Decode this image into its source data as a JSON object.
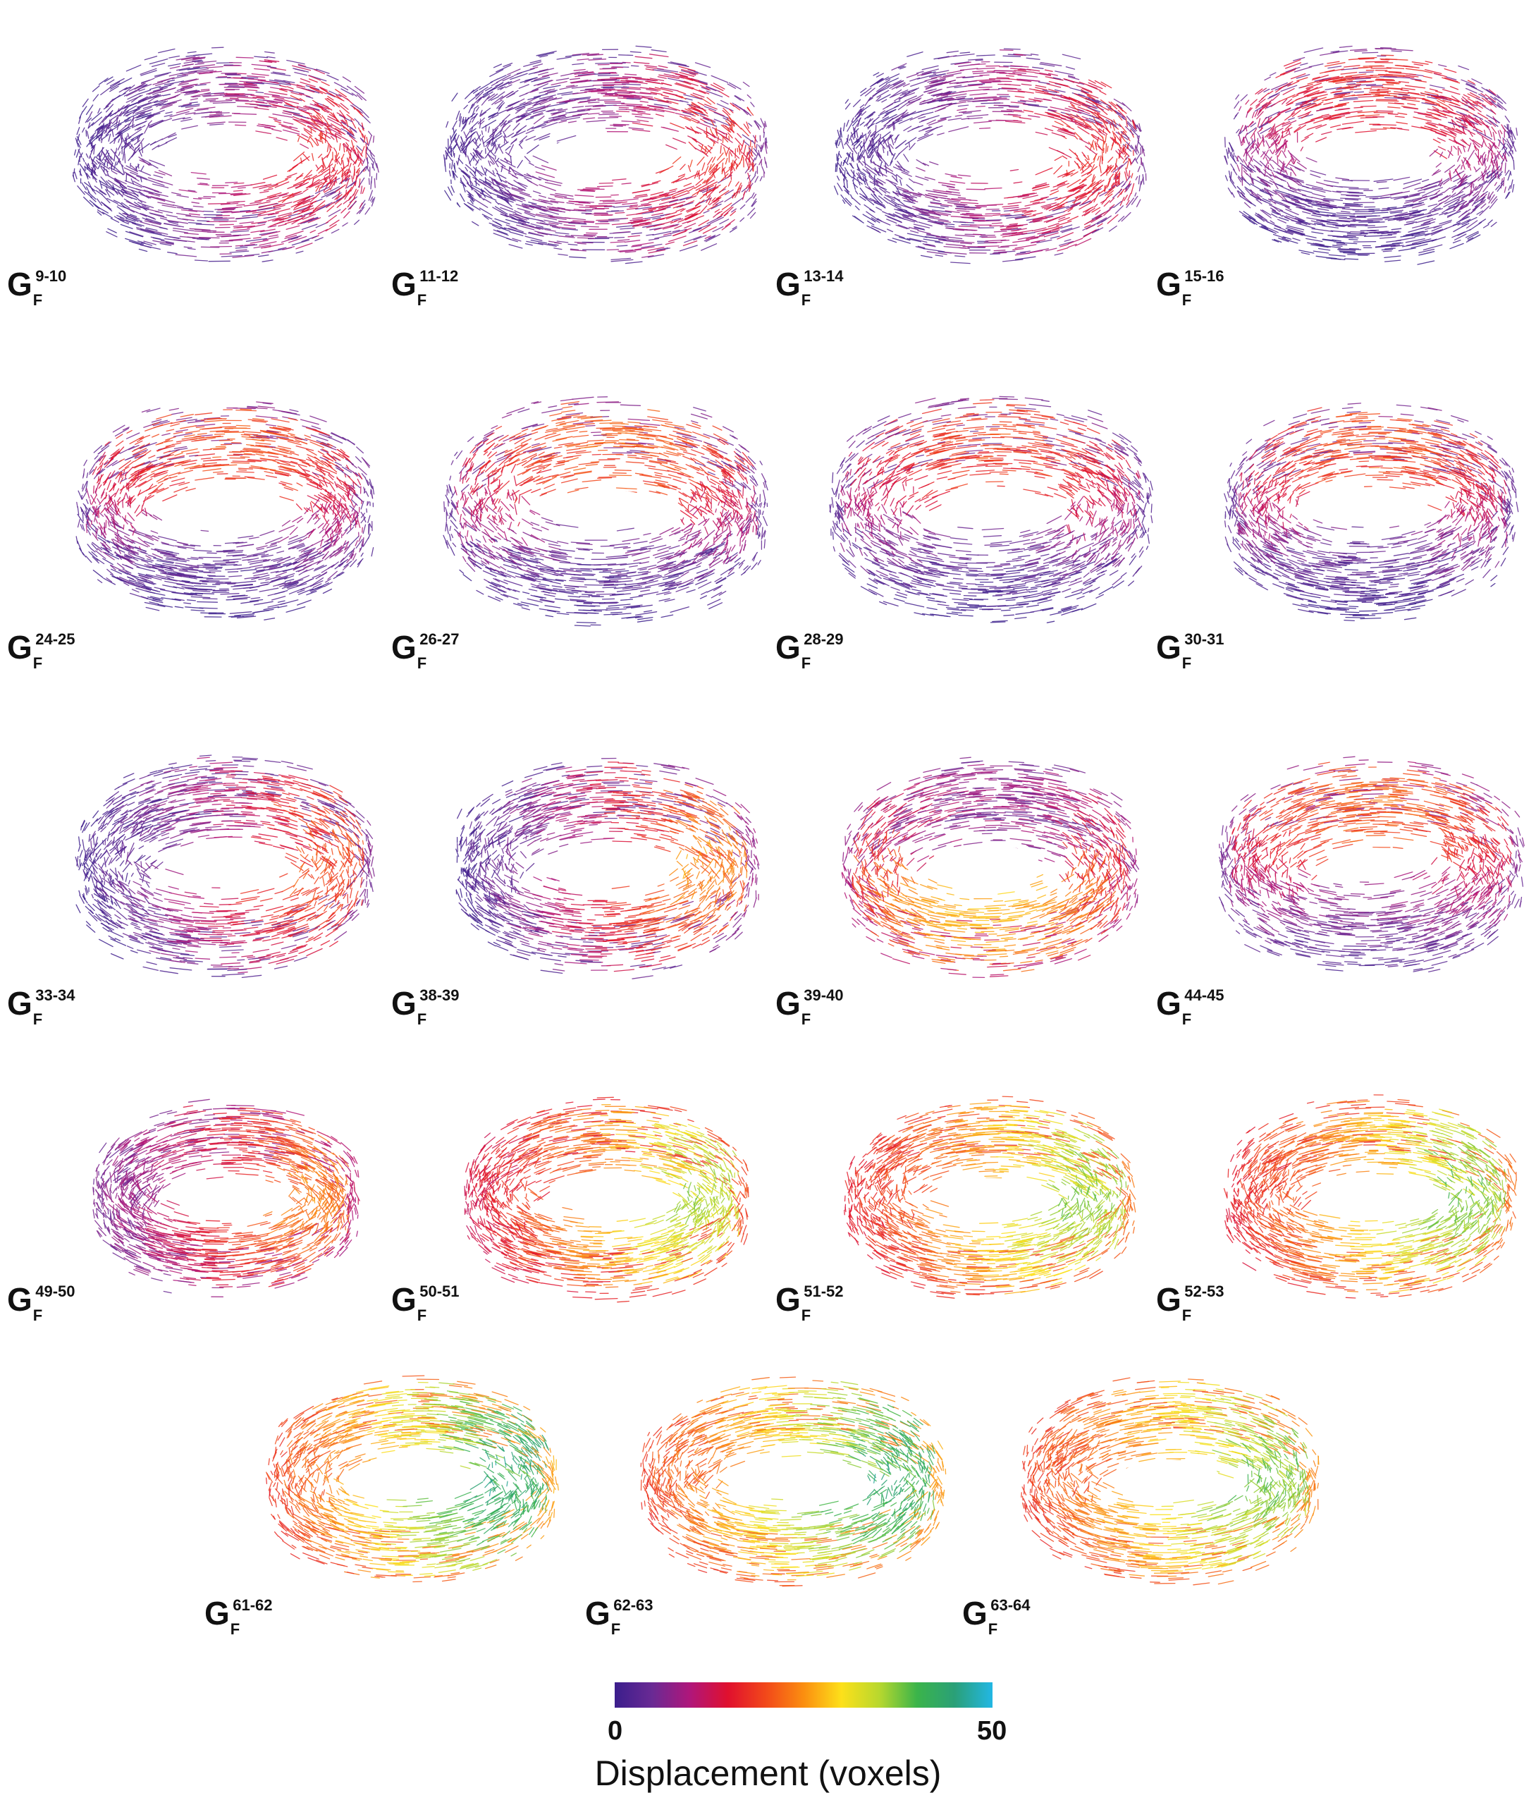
{
  "panels": [
    {
      "id": "9-10",
      "sub": "F",
      "sup": "9-10",
      "main": "G",
      "palette": [
        0.0,
        0.38
      ],
      "hot": "right",
      "hole": 0.48
    },
    {
      "id": "11-12",
      "sub": "F",
      "sup": "11-12",
      "main": "G",
      "palette": [
        0.0,
        0.4
      ],
      "hot": "right",
      "hole": 0.48
    },
    {
      "id": "13-14",
      "sub": "F",
      "sup": "13-14",
      "main": "G",
      "palette": [
        0.0,
        0.4
      ],
      "hot": "right",
      "hole": 0.48
    },
    {
      "id": "15-16",
      "sub": "F",
      "sup": "15-16",
      "main": "G",
      "palette": [
        0.0,
        0.4
      ],
      "hot": "top",
      "hole": 0.48
    },
    {
      "id": "24-25",
      "sub": "F",
      "sup": "24-25",
      "main": "G",
      "palette": [
        0.0,
        0.48
      ],
      "hot": "top",
      "hole": 0.48
    },
    {
      "id": "26-27",
      "sub": "F",
      "sup": "26-27",
      "main": "G",
      "palette": [
        0.0,
        0.5
      ],
      "hot": "top",
      "hole": 0.45
    },
    {
      "id": "28-29",
      "sub": "F",
      "sup": "28-29",
      "main": "G",
      "palette": [
        0.0,
        0.45
      ],
      "hot": "top",
      "hole": 0.45
    },
    {
      "id": "30-31",
      "sub": "F",
      "sup": "30-31",
      "main": "G",
      "palette": [
        0.0,
        0.48
      ],
      "hot": "top",
      "hole": 0.48
    },
    {
      "id": "33-34",
      "sub": "F",
      "sup": "33-34",
      "main": "G",
      "palette": [
        0.0,
        0.48
      ],
      "hot": "right",
      "hole": 0.48
    },
    {
      "id": "38-39",
      "sub": "F",
      "sup": "38-39",
      "main": "G",
      "palette": [
        0.0,
        0.58
      ],
      "hot": "right",
      "hole": 0.48
    },
    {
      "id": "39-40",
      "sub": "F",
      "sup": "39-40",
      "main": "G",
      "palette": [
        0.1,
        0.62
      ],
      "hot": "front",
      "hole": 0.48
    },
    {
      "id": "44-45",
      "sub": "F",
      "sup": "44-45",
      "main": "G",
      "palette": [
        0.05,
        0.5
      ],
      "hot": "top",
      "hole": 0.42
    },
    {
      "id": "49-50",
      "sub": "F",
      "sup": "49-50",
      "main": "G",
      "palette": [
        0.1,
        0.55
      ],
      "hot": "right",
      "hole": 0.48
    },
    {
      "id": "50-51",
      "sub": "F",
      "sup": "50-51",
      "main": "G",
      "palette": [
        0.25,
        0.8
      ],
      "hot": "right",
      "hole": 0.48
    },
    {
      "id": "51-52",
      "sub": "F",
      "sup": "51-52",
      "main": "G",
      "palette": [
        0.3,
        0.82
      ],
      "hot": "right",
      "hole": 0.48
    },
    {
      "id": "52-53",
      "sub": "F",
      "sup": "52-53",
      "main": "G",
      "palette": [
        0.3,
        0.84
      ],
      "hot": "right",
      "hole": 0.48
    },
    {
      "id": "61-62",
      "sub": "F",
      "sup": "61-62",
      "main": "G",
      "palette": [
        0.35,
        0.98
      ],
      "hot": "right",
      "hole": 0.48
    },
    {
      "id": "62-63",
      "sub": "F",
      "sup": "62-63",
      "main": "G",
      "palette": [
        0.35,
        0.96
      ],
      "hot": "right",
      "hole": 0.48
    },
    {
      "id": "63-64",
      "sub": "F",
      "sup": "63-64",
      "main": "G",
      "palette": [
        0.35,
        0.84
      ],
      "hot": "right",
      "hole": 0.48
    }
  ],
  "colorbar": {
    "min_label": "0",
    "max_label": "50",
    "title": "Displacement (voxels)",
    "range": [
      0,
      50
    ],
    "colors": [
      "#3b1e8c",
      "#6a2a94",
      "#b0167a",
      "#e0102e",
      "#f2481a",
      "#fb8e10",
      "#fde01a",
      "#b8d82e",
      "#3bb44a",
      "#2aa078",
      "#22b7e4"
    ]
  }
}
